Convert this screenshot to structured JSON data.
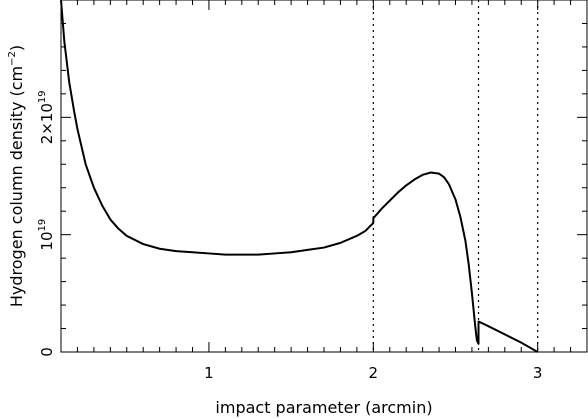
{
  "chart_data": {
    "type": "line",
    "xlabel": "impact parameter (arcmin)",
    "ylabel": "Hydrogen column density (cm",
    "ylabel_sup": "−2",
    "ylabel_close": ")",
    "xlim": [
      0.1,
      3.3
    ],
    "ylim": [
      0,
      3e+19
    ],
    "x_ticks": [
      {
        "value": 1,
        "label": "1"
      },
      {
        "value": 2,
        "label": "2"
      },
      {
        "value": 3,
        "label": "3"
      }
    ],
    "y_ticks": [
      {
        "value": 0,
        "label": "0"
      },
      {
        "value": 1e+19,
        "label": "10",
        "sup": "19"
      },
      {
        "value": 2e+19,
        "label": "2×10",
        "sup": "19"
      }
    ],
    "vlines": [
      2.0,
      2.64,
      3.0
    ],
    "grid": false,
    "series": [
      {
        "color": "#000000",
        "x": [
          0.1,
          0.12,
          0.15,
          0.18,
          0.2,
          0.25,
          0.3,
          0.35,
          0.4,
          0.45,
          0.5,
          0.6,
          0.7,
          0.8,
          0.9,
          1.0,
          1.1,
          1.2,
          1.3,
          1.4,
          1.5,
          1.6,
          1.7,
          1.8,
          1.9,
          1.95,
          2.0,
          2.0,
          2.05,
          2.1,
          2.15,
          2.2,
          2.25,
          2.3,
          2.35,
          2.4,
          2.43,
          2.46,
          2.5,
          2.53,
          2.56,
          2.58,
          2.6,
          2.62,
          2.63,
          2.64,
          2.64,
          2.7,
          2.8,
          2.9,
          2.95,
          3.0
        ],
        "y": [
          3e+19,
          2.65e+19,
          2.3e+19,
          2.05e+19,
          1.9e+19,
          1.6e+19,
          1.4e+19,
          1.25e+19,
          1.13e+19,
          1.05e+19,
          9.9e+18,
          9.2e+18,
          8.8e+18,
          8.6e+18,
          8.5e+18,
          8.4e+18,
          8.3e+18,
          8.3e+18,
          8.3e+18,
          8.4e+18,
          8.5e+18,
          8.7e+18,
          8.9e+18,
          9.3e+18,
          9.9e+18,
          1.03e+19,
          1.1e+19,
          1.14e+19,
          1.22e+19,
          1.29e+19,
          1.36e+19,
          1.42e+19,
          1.47e+19,
          1.51e+19,
          1.53e+19,
          1.52e+19,
          1.49e+19,
          1.43e+19,
          1.3e+19,
          1.15e+19,
          9.5e+18,
          7.5e+18,
          5e+18,
          2.2e+18,
          1e+18,
          7e+17,
          2.6e+18,
          2.2e+18,
          1.5e+18,
          8e+17,
          4e+17,
          0.0
        ]
      }
    ]
  }
}
